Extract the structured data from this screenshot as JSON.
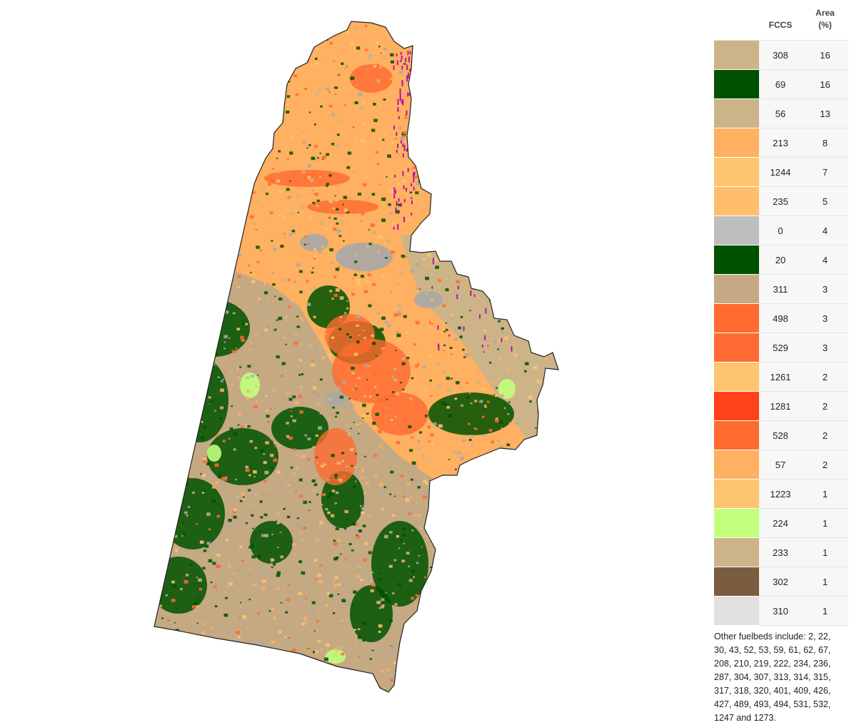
{
  "legend": {
    "header_code": "FCCS",
    "header_area_line1": "Area",
    "header_area_line2": "(%)",
    "rows": [
      {
        "code": "308",
        "area": "16",
        "color": "#cdb488"
      },
      {
        "code": "69",
        "area": "16",
        "color": "#005200"
      },
      {
        "code": "56",
        "area": "13",
        "color": "#cdb488"
      },
      {
        "code": "213",
        "area": "8",
        "color": "#ffb061"
      },
      {
        "code": "1244",
        "area": "7",
        "color": "#ffc470"
      },
      {
        "code": "235",
        "area": "5",
        "color": "#ffbf6a"
      },
      {
        "code": "0",
        "area": "4",
        "color": "#bebebe"
      },
      {
        "code": "20",
        "area": "4",
        "color": "#005200"
      },
      {
        "code": "311",
        "area": "3",
        "color": "#c4a983"
      },
      {
        "code": "498",
        "area": "3",
        "color": "#ff6a30"
      },
      {
        "code": "529",
        "area": "3",
        "color": "#ff6a33"
      },
      {
        "code": "1261",
        "area": "2",
        "color": "#ffc470"
      },
      {
        "code": "1281",
        "area": "2",
        "color": "#ff4217"
      },
      {
        "code": "528",
        "area": "2",
        "color": "#ff6a30"
      },
      {
        "code": "57",
        "area": "2",
        "color": "#ffb061"
      },
      {
        "code": "1223",
        "area": "1",
        "color": "#ffc470"
      },
      {
        "code": "224",
        "area": "1",
        "color": "#c1ff7c"
      },
      {
        "code": "233",
        "area": "1",
        "color": "#cdb488"
      },
      {
        "code": "302",
        "area": "1",
        "color": "#7a5c40"
      },
      {
        "code": "310",
        "area": "1",
        "color": "#e0e0e0"
      }
    ],
    "other_note": "Other fuelbeds include: 2, 22, 30, 43, 52, 53, 59, 61, 62, 67, 208, 210, 219, 222, 234, 236, 287, 304, 307, 313, 314, 315, 317, 318, 320, 401, 409, 426, 427, 489, 493, 494, 531, 532, 1247 and 1273."
  },
  "map_colors": {
    "orange_light": "#ffb061",
    "orange_pale": "#ffc470",
    "orange_red": "#ff6a30",
    "red": "#ff4217",
    "tan": "#c4a983",
    "tan_light": "#cdb488",
    "green_dark": "#005200",
    "green_light": "#c1ff7c",
    "gray": "#a9a9a9",
    "purple": "#b000b0",
    "outline": "#222222"
  }
}
